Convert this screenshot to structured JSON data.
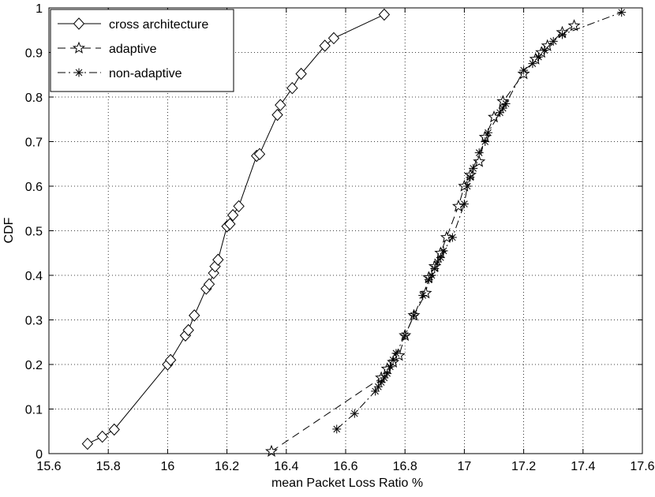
{
  "chart_data": {
    "type": "line",
    "title": "",
    "xlabel": "mean Packet Loss Ratio %",
    "ylabel": "CDF",
    "xlim": [
      15.6,
      17.6
    ],
    "ylim": [
      0,
      1
    ],
    "xticks": [
      "15.6",
      "15.8",
      "16",
      "16.2",
      "16.4",
      "16.6",
      "16.8",
      "17",
      "17.2",
      "17.4",
      "17.6"
    ],
    "yticks": [
      "0",
      "0.1",
      "0.2",
      "0.3",
      "0.4",
      "0.5",
      "0.6",
      "0.7",
      "0.8",
      "0.9",
      "1"
    ],
    "grid": true,
    "legend_position": "top-left",
    "series": [
      {
        "name": "cross architecture",
        "line_style": "solid",
        "marker": "diamond",
        "x": [
          15.73,
          15.78,
          15.82,
          16.0,
          16.01,
          16.06,
          16.07,
          16.09,
          16.13,
          16.14,
          16.155,
          16.16,
          16.17,
          16.2,
          16.21,
          16.22,
          16.24,
          16.3,
          16.31,
          16.37,
          16.38,
          16.42,
          16.45,
          16.53,
          16.56,
          16.73
        ],
        "y": [
          0.022,
          0.038,
          0.054,
          0.2,
          0.21,
          0.265,
          0.277,
          0.31,
          0.37,
          0.38,
          0.405,
          0.42,
          0.435,
          0.51,
          0.515,
          0.535,
          0.555,
          0.668,
          0.672,
          0.76,
          0.782,
          0.82,
          0.852,
          0.915,
          0.932,
          0.985
        ]
      },
      {
        "name": "adaptive",
        "line_style": "dashed",
        "marker": "star",
        "x": [
          16.35,
          16.72,
          16.74,
          16.76,
          16.78,
          16.8,
          16.83,
          16.87,
          16.88,
          16.9,
          16.92,
          16.94,
          16.98,
          17.0,
          17.02,
          17.05,
          17.07,
          17.1,
          17.13,
          17.2,
          17.24,
          17.26,
          17.28,
          17.33,
          17.37
        ],
        "y": [
          0.005,
          0.17,
          0.19,
          0.205,
          0.22,
          0.265,
          0.31,
          0.36,
          0.395,
          0.42,
          0.45,
          0.485,
          0.555,
          0.6,
          0.625,
          0.655,
          0.71,
          0.755,
          0.79,
          0.852,
          0.885,
          0.9,
          0.915,
          0.945,
          0.96
        ]
      },
      {
        "name": "non-adaptive",
        "line_style": "dashdot",
        "marker": "asterisk",
        "x": [
          16.57,
          16.63,
          16.7,
          16.71,
          16.72,
          16.73,
          16.74,
          16.75,
          16.76,
          16.77,
          16.8,
          16.83,
          16.86,
          16.88,
          16.89,
          16.9,
          16.91,
          16.92,
          16.93,
          16.96,
          17.0,
          17.01,
          17.02,
          17.03,
          17.05,
          17.07,
          17.08,
          17.12,
          17.13,
          17.14,
          17.2,
          17.23,
          17.25,
          17.27,
          17.3,
          17.33,
          17.53
        ],
        "y": [
          0.055,
          0.09,
          0.14,
          0.15,
          0.16,
          0.17,
          0.18,
          0.195,
          0.21,
          0.225,
          0.265,
          0.31,
          0.355,
          0.39,
          0.4,
          0.415,
          0.43,
          0.44,
          0.455,
          0.485,
          0.56,
          0.6,
          0.62,
          0.64,
          0.675,
          0.7,
          0.72,
          0.765,
          0.775,
          0.785,
          0.86,
          0.875,
          0.89,
          0.905,
          0.925,
          0.94,
          0.99
        ]
      }
    ]
  }
}
